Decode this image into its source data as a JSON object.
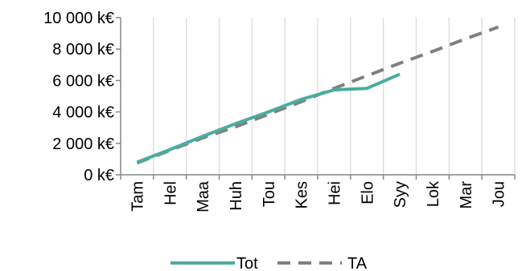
{
  "chart_data": {
    "type": "line",
    "categories": [
      "Tam",
      "Hel",
      "Maa",
      "Huh",
      "Tou",
      "Kes",
      "Hei",
      "Elo",
      "Syy",
      "Lok",
      "Mar",
      "Jou"
    ],
    "y_tick_labels": [
      "0 k€",
      "2 000 k€",
      "4 000 k€",
      "6 000 k€",
      "8 000 k€",
      "10 000 k€"
    ],
    "y_ticks": [
      0,
      2000,
      4000,
      6000,
      8000,
      10000
    ],
    "ylim": [
      0,
      10000
    ],
    "grid": "vertical lines between categories",
    "legend_position": "bottom",
    "series": [
      {
        "name": "Tot",
        "color": "#4bacA0",
        "style": "solid",
        "values": [
          800,
          1600,
          2450,
          3250,
          4000,
          4800,
          5400,
          5500,
          6400,
          null,
          null,
          null
        ]
      },
      {
        "name": "TA",
        "color": "#808080",
        "style": "dashed",
        "values": [
          750,
          1550,
          2350,
          3050,
          3850,
          4650,
          5500,
          6300,
          7100,
          7850,
          8650,
          9400
        ]
      }
    ]
  }
}
